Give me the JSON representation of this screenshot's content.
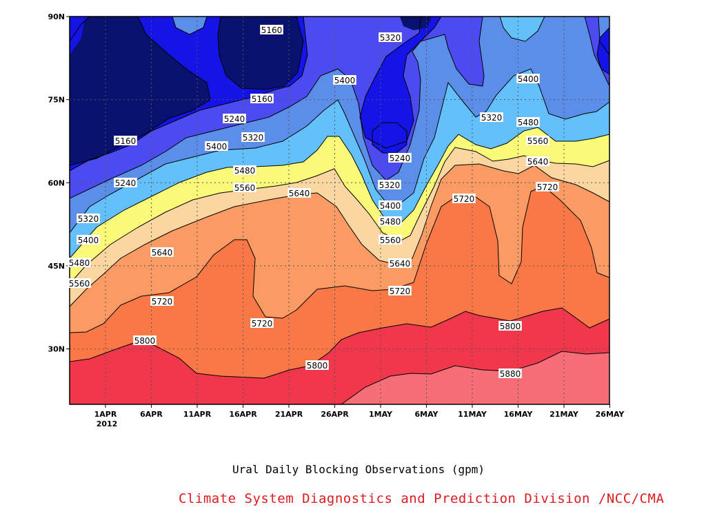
{
  "chart_data": {
    "type": "contour",
    "x_tick_labels": [
      "1APR",
      "6APR",
      "11APR",
      "16APR",
      "21APR",
      "26APR",
      "1MAY",
      "6MAY",
      "11MAY",
      "16MAY",
      "21MAY",
      "26MAY"
    ],
    "x_year_label": "2012",
    "x_range": [
      "2012-03-28",
      "2012-05-26"
    ],
    "y_tick_labels": [
      "90N",
      "75N",
      "60N",
      "45N",
      "30N"
    ],
    "y_range": [
      20,
      90
    ],
    "contour_levels": [
      5160,
      5240,
      5320,
      5400,
      5480,
      5560,
      5640,
      5720,
      5800,
      5880
    ],
    "contour_labels": [
      "5160",
      "5240",
      "5320",
      "5400",
      "5480",
      "5560",
      "5640",
      "5720",
      "5800",
      "5880"
    ],
    "fill_colors": [
      "#0a1270",
      "#1414e6",
      "#4b4bf0",
      "#5a8ee8",
      "#64c0fa",
      "#fafa78",
      "#fad7a0",
      "#fa9b64",
      "#fa7846",
      "#f56e78",
      "#f0374b"
    ],
    "grid": true,
    "caption": "Ural Daily Blocking Observations (gpm)"
  },
  "credit": "Climate System Diagnostics and Prediction Division /NCC/CMA"
}
